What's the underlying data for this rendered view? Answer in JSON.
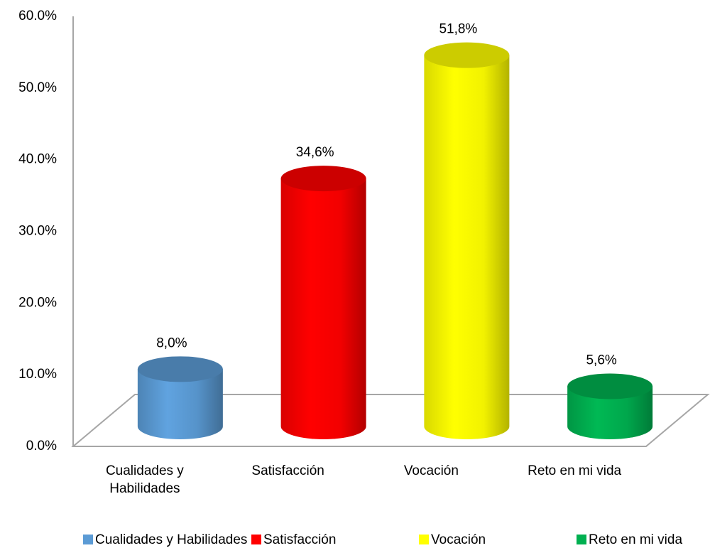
{
  "chart_data": {
    "type": "bar",
    "categories": [
      "Cualidades y Habilidades",
      "Satisfacción",
      "Vocación",
      "Reto en mi vida"
    ],
    "values": [
      8.0,
      34.6,
      51.8,
      5.6
    ],
    "value_labels": [
      "8,0%",
      "34,6%",
      "51,8%",
      "5,6%"
    ],
    "colors": [
      "#5b9bd5",
      "#ff0000",
      "#ffff00",
      "#00b050"
    ],
    "ylim": [
      0,
      60
    ],
    "yticks": [
      {
        "value": 0,
        "label": "0.0%"
      },
      {
        "value": 10,
        "label": "10.0%"
      },
      {
        "value": 20,
        "label": "20.0%"
      },
      {
        "value": 30,
        "label": "30.0%"
      },
      {
        "value": 40,
        "label": "40.0%"
      },
      {
        "value": 50,
        "label": "50.0%"
      },
      {
        "value": 60,
        "label": "60.0%"
      }
    ],
    "legend": "bottom"
  }
}
